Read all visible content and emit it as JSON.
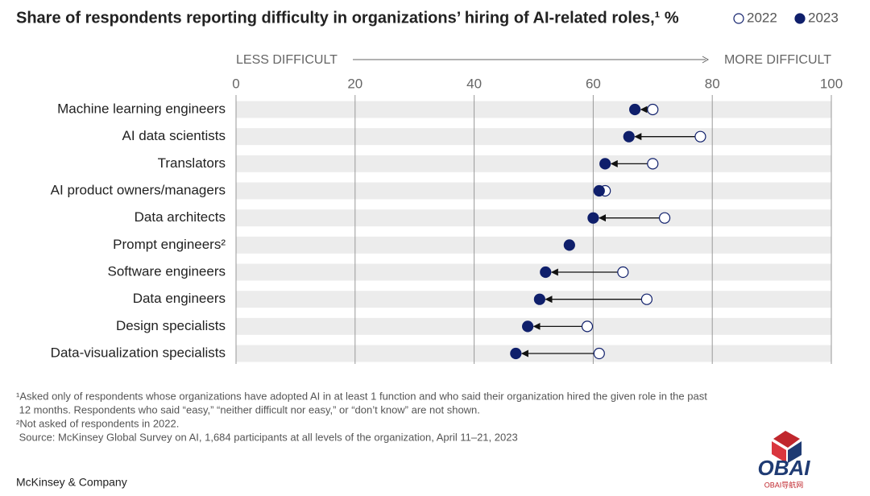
{
  "chart_data": {
    "type": "dumbbell",
    "title": "Share of respondents reporting difficulty in organizations’ hiring of AI-related roles,¹ %",
    "axis_left_label": "LESS DIFFICULT",
    "axis_right_label": "MORE DIFFICULT",
    "categories": [
      "Machine learning engineers",
      "AI data scientists",
      "Translators",
      "AI product owners/managers",
      "Data architects",
      "Prompt engineers²",
      "Software engineers",
      "Data engineers",
      "Design specialists",
      "Data-visualization specialists"
    ],
    "series": [
      {
        "name": "2022",
        "color": "#ffffff",
        "values": [
          70,
          78,
          70,
          62,
          72,
          null,
          65,
          69,
          59,
          61
        ]
      },
      {
        "name": "2023",
        "color": "#0f1f6b",
        "values": [
          67,
          66,
          62,
          61,
          60,
          56,
          52,
          51,
          49,
          47
        ]
      }
    ],
    "xlim": [
      0,
      100
    ],
    "xticks": [
      0,
      20,
      40,
      60,
      80,
      100
    ],
    "grid": true,
    "footnotes": [
      "¹Asked only of respondents whose organizations have adopted AI in at least 1 function and who said their organization hired the given role in the past",
      " 12 months. Respondents who said “easy,” “neither difficult nor easy,” or “don’t know” are not shown.",
      "²Not asked of respondents in 2022.",
      " Source: McKinsey Global Survey on AI, 1,684 participants at all levels of the organization, April 11–21, 2023"
    ],
    "brand": "McKinsey & Company",
    "watermark": "OBAI",
    "watermark_subtitle": "OBAI导航网"
  }
}
